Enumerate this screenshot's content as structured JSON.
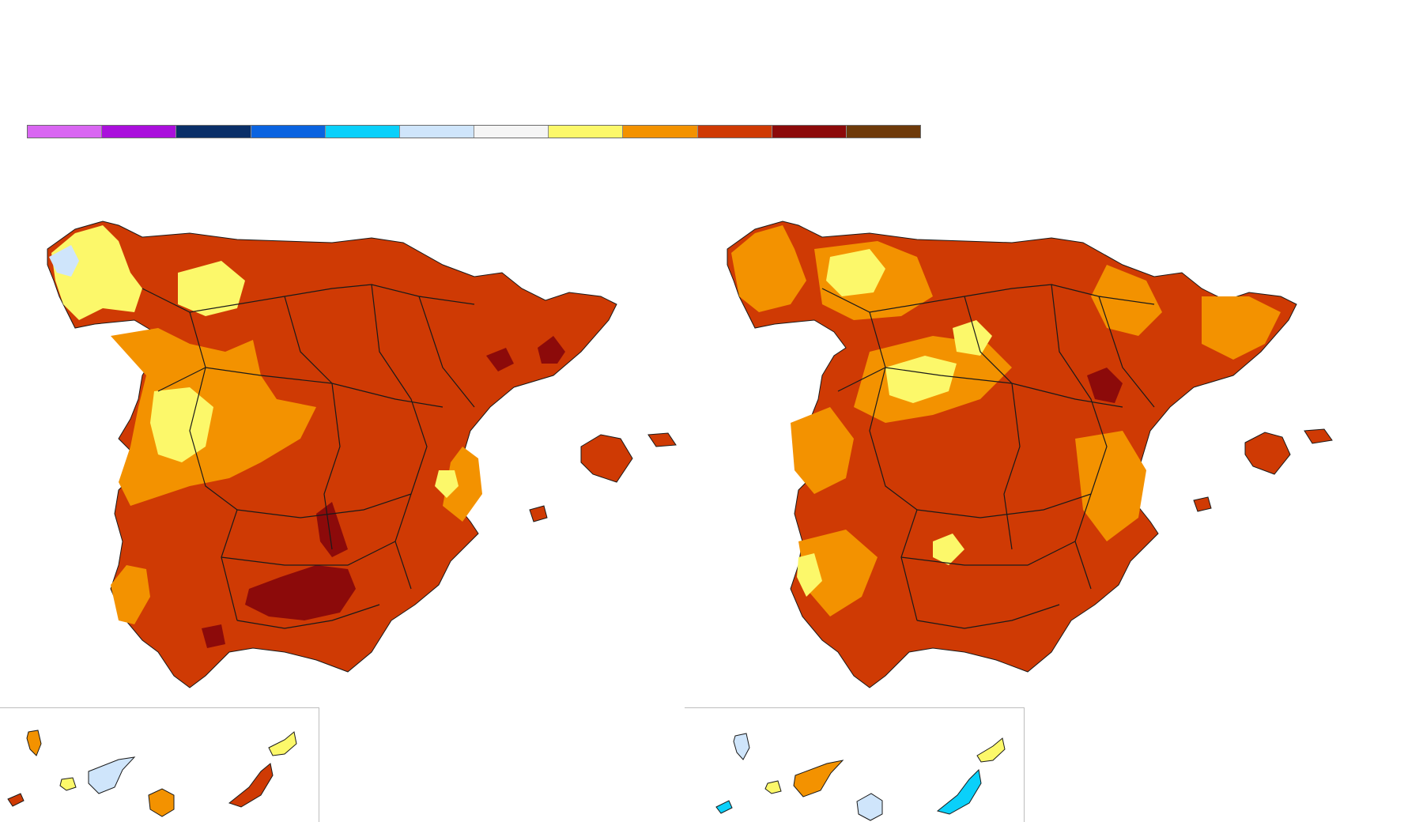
{
  "legend": {
    "colors": [
      "#d966f2",
      "#aa0fdc",
      "#0a2f68",
      "#0a63e0",
      "#0ad0fa",
      "#cfe5fb",
      "#f5f5f5",
      "#fcf86a",
      "#f39200",
      "#cf3a04",
      "#8c0a0a",
      "#6e3a0a"
    ]
  },
  "maps": [
    {
      "id": "left",
      "background_color": "#cf3a04",
      "patches": [
        {
          "color": "#f39200"
        },
        {
          "color": "#fcf86a"
        },
        {
          "color": "#cfe5fb"
        },
        {
          "color": "#8c0a0a"
        }
      ]
    },
    {
      "id": "right",
      "background_color": "#cf3a04",
      "patches": [
        {
          "color": "#f39200"
        },
        {
          "color": "#fcf86a"
        },
        {
          "color": "#8c0a0a"
        }
      ]
    }
  ],
  "canaries": [
    {
      "id": "left",
      "color_scheme": [
        "#f39200",
        "#cf3a04",
        "#fcf86a",
        "#cfe5fb"
      ]
    },
    {
      "id": "right",
      "color_scheme": [
        "#cfe5fb",
        "#0ad0fa",
        "#fcf86a",
        "#f39200"
      ]
    }
  ],
  "icons": {
    "legend": "color-scale-bar",
    "map": "spain-map-icon",
    "inset": "canary-islands-inset-icon"
  }
}
